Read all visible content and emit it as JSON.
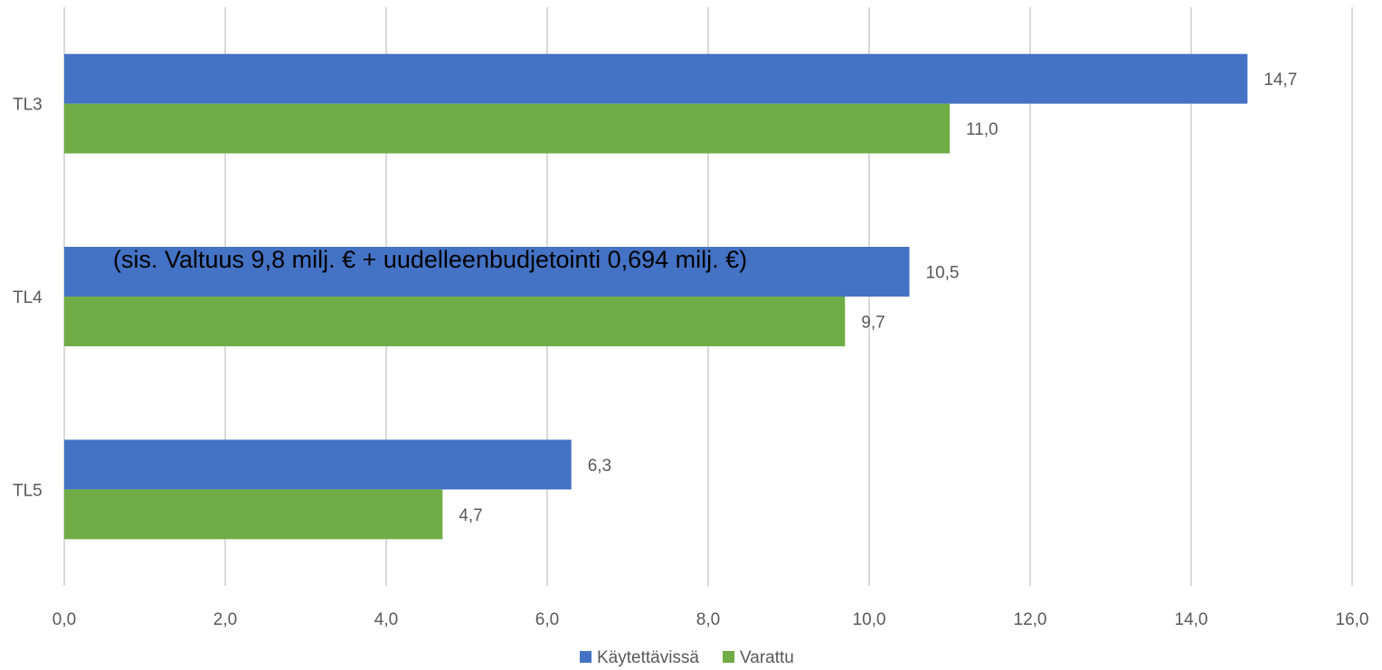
{
  "chart_data": {
    "type": "bar",
    "orientation": "horizontal",
    "categories": [
      "TL3",
      "TL4",
      "TL5"
    ],
    "series": [
      {
        "name": "Käytettävissä",
        "color": "#4472C4",
        "values": [
          14.7,
          10.5,
          6.3
        ]
      },
      {
        "name": "Varattu",
        "color": "#70AD47",
        "values": [
          11.0,
          9.7,
          4.7
        ]
      }
    ],
    "data_labels": [
      [
        "14,7",
        "10,5",
        "6,3"
      ],
      [
        "11,0",
        "9,7",
        "4,7"
      ]
    ],
    "xlim": [
      0,
      16
    ],
    "x_ticks": [
      "0,0",
      "2,0",
      "4,0",
      "6,0",
      "8,0",
      "10,0",
      "12,0",
      "14,0",
      "16,0"
    ],
    "grid": "vertical",
    "legend_position": "bottom",
    "annotation": "(sis. Valtuus 9,8 milj. € + uudelleenbudjetointi 0,694 milj. €)"
  }
}
